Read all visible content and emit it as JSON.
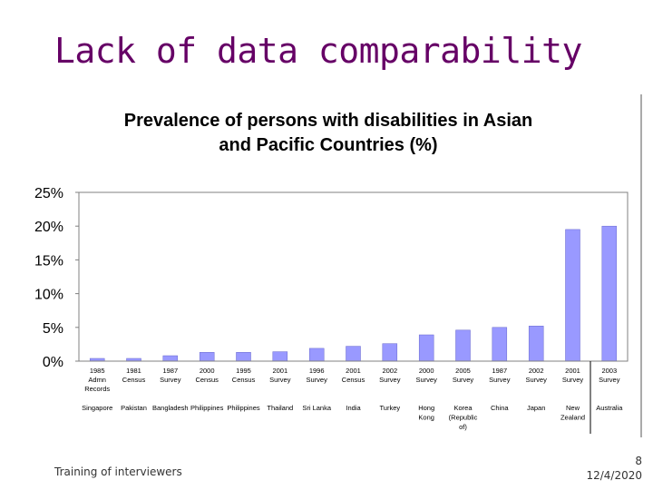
{
  "slide": {
    "title": "Lack of data comparability",
    "footer_left": "Training of interviewers",
    "page_number": "8",
    "date": "12/4/2020"
  },
  "colors": {
    "title": "#660066",
    "bar": "#9999ff",
    "bar_edge": "#6666cc"
  },
  "chart_data": {
    "type": "bar",
    "title": [
      "Prevalence of persons with disabilities in Asian",
      "and Pacific Countries (%)"
    ],
    "xlabel": "",
    "ylabel": "",
    "ylim": [
      0,
      25
    ],
    "yticks": [
      "0%",
      "5%",
      "10%",
      "15%",
      "20%",
      "25%"
    ],
    "grid": false,
    "legend": "none",
    "categories": [
      {
        "label": [
          "1985",
          "Admn",
          "Records"
        ],
        "country": [
          "Singapore"
        ]
      },
      {
        "label": [
          "1981",
          "Census"
        ],
        "country": [
          "Pakistan"
        ]
      },
      {
        "label": [
          "1987",
          "Survey"
        ],
        "country": [
          "Bangladesh"
        ]
      },
      {
        "label": [
          "2000",
          "Census"
        ],
        "country": [
          "Philippines"
        ]
      },
      {
        "label": [
          "1995",
          "Census"
        ],
        "country": [
          "Philippines"
        ]
      },
      {
        "label": [
          "2001",
          "Survey"
        ],
        "country": [
          "Thailand"
        ]
      },
      {
        "label": [
          "1996",
          "Survey"
        ],
        "country": [
          "Sri Lanka"
        ]
      },
      {
        "label": [
          "2001",
          "Census"
        ],
        "country": [
          "India"
        ]
      },
      {
        "label": [
          "2002",
          "Survey"
        ],
        "country": [
          "Turkey"
        ]
      },
      {
        "label": [
          "2000",
          "Survey"
        ],
        "country": [
          "Hong",
          "Kong"
        ]
      },
      {
        "label": [
          "2005",
          "Survey"
        ],
        "country": [
          "Korea",
          "(Republic",
          "of)"
        ]
      },
      {
        "label": [
          "1987",
          "Survey"
        ],
        "country": [
          "China"
        ]
      },
      {
        "label": [
          "2002",
          "Survey"
        ],
        "country": [
          "Japan"
        ]
      },
      {
        "label": [
          "2001",
          "Survey"
        ],
        "country": [
          "New",
          "Zealand"
        ]
      },
      {
        "label": [
          "2003",
          "Survey"
        ],
        "country": [
          "Australia"
        ]
      }
    ],
    "values": [
      0.4,
      0.4,
      0.8,
      1.3,
      1.3,
      1.4,
      1.9,
      2.2,
      2.6,
      3.9,
      4.6,
      5.0,
      5.2,
      19.5,
      20.0
    ]
  }
}
